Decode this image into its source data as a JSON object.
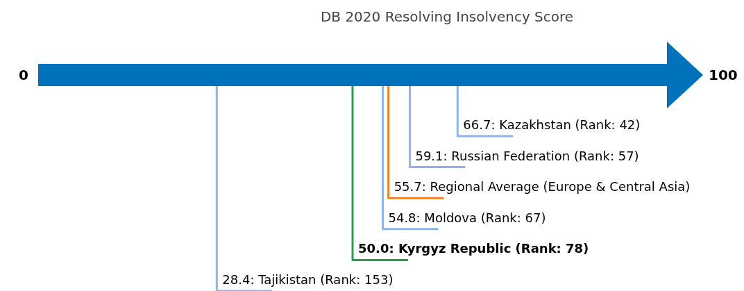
{
  "chart_data": {
    "type": "other",
    "title": "DB 2020 Resolving Insolvency Score",
    "annotations": [
      "0",
      "100"
    ],
    "color": "#0072bc",
    "categories": [
      "Kazakhstan (Rank: 42)",
      "Russian Federation (Rank: 57)",
      "Regional Average (Europe & Central Asia)",
      "Moldova (Rank: 67)",
      "Kyrgyz Republic (Rank: 78)",
      "Tajikistan (Rank: 153)"
    ],
    "values": [
      66.7,
      59.1,
      55.7,
      54.8,
      50.0,
      28.4
    ],
    "value_labels": [
      "66.7:",
      "59.1:",
      "55.7:",
      "54.8:",
      "50.0:",
      "28.4:"
    ],
    "colors": [
      "#8db4e8",
      "#8db4e8",
      "#f58220",
      "#8db4e8",
      "#1fa24a",
      "#8db4e8"
    ]
  }
}
